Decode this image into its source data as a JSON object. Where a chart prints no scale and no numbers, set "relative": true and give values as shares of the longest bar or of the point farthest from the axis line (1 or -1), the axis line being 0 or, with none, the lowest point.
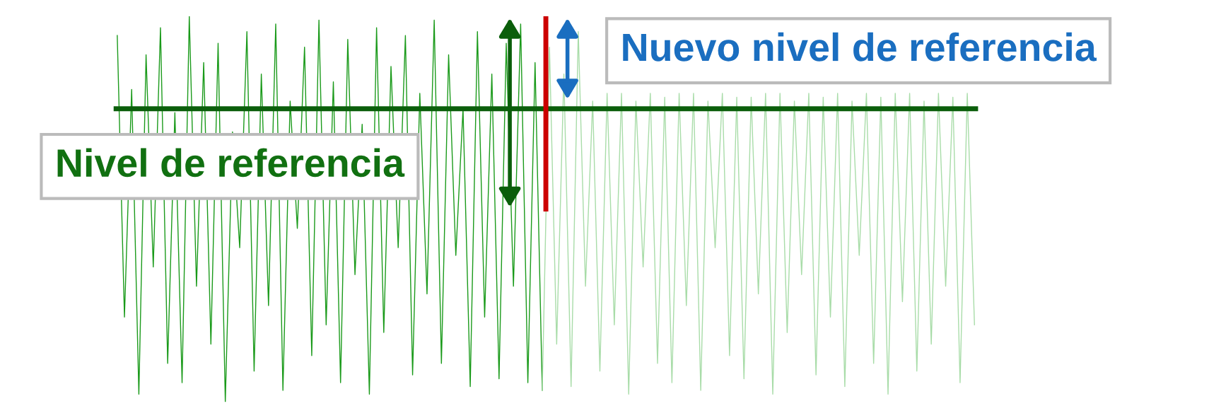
{
  "chart_data": {
    "type": "line",
    "relative": true,
    "legend": false,
    "grid": false,
    "line_style": "solid",
    "marker": "none",
    "categories": [
      null,
      null,
      null,
      null,
      null,
      null,
      null,
      null,
      null,
      null,
      null,
      null,
      null,
      null,
      null,
      null,
      null,
      null,
      null,
      null,
      null,
      null,
      null,
      null,
      null,
      null,
      null,
      null,
      null,
      null,
      null,
      null,
      null,
      null,
      null,
      null,
      null,
      null,
      null,
      null,
      null,
      null,
      null,
      null,
      null,
      null,
      null,
      null,
      null,
      null,
      null,
      null,
      null,
      null,
      null,
      null,
      null,
      null,
      null,
      null,
      null,
      null,
      null,
      null,
      null,
      null,
      null,
      null,
      null,
      null,
      null,
      null,
      null,
      null,
      null,
      null,
      null,
      null,
      null,
      null,
      null,
      null,
      null,
      null,
      null,
      null,
      null,
      null,
      null,
      null,
      null,
      null,
      null,
      null,
      null,
      null,
      null,
      null,
      null,
      null,
      null,
      null,
      null,
      null,
      null,
      null,
      null,
      null,
      null,
      null,
      null,
      null,
      null,
      null,
      null,
      null,
      null,
      null,
      null,
      null
    ],
    "series": [
      {
        "color": "#1a9a1a",
        "values": [
          0.95,
          0.22,
          0.81,
          0.02,
          0.9,
          0.35,
          0.97,
          0.1,
          0.75,
          0.05,
          1.0,
          0.3,
          0.88,
          0.15,
          0.93,
          0.0,
          0.7,
          0.4,
          0.96,
          0.08,
          0.85,
          0.25,
          0.98,
          0.03,
          0.78,
          0.45,
          0.92,
          0.12,
          0.99,
          0.2,
          0.83,
          0.05,
          0.94,
          0.33,
          0.72,
          0.02,
          0.97,
          0.18,
          0.87,
          0.4,
          0.95,
          0.07,
          0.8,
          0.28,
          0.99,
          0.1,
          0.9,
          0.38,
          0.76,
          0.04,
          0.96,
          0.22,
          0.85,
          0.06,
          0.93,
          0.3,
          0.98,
          0.05,
          0.88,
          0.03,
          null,
          null,
          null,
          null,
          null,
          null,
          null,
          null,
          null,
          null,
          null,
          null,
          null,
          null,
          null,
          null,
          null,
          null,
          null,
          null,
          null,
          null,
          null,
          null,
          null,
          null,
          null,
          null,
          null,
          null,
          null,
          null,
          null,
          null,
          null,
          null,
          null,
          null,
          null,
          null,
          null,
          null,
          null,
          null,
          null,
          null,
          null,
          null,
          null,
          null,
          null,
          null,
          null,
          null,
          null,
          null,
          null,
          null,
          null,
          null
        ]
      },
      {
        "color": "#a8dca8",
        "values": [
          null,
          null,
          null,
          null,
          null,
          null,
          null,
          null,
          null,
          null,
          null,
          null,
          null,
          null,
          null,
          null,
          null,
          null,
          null,
          null,
          null,
          null,
          null,
          null,
          null,
          null,
          null,
          null,
          null,
          null,
          null,
          null,
          null,
          null,
          null,
          null,
          null,
          null,
          null,
          null,
          null,
          null,
          null,
          null,
          null,
          null,
          null,
          null,
          null,
          null,
          null,
          null,
          null,
          null,
          null,
          null,
          null,
          null,
          null,
          0.03,
          0.92,
          0.15,
          0.85,
          0.04,
          0.96,
          0.3,
          0.78,
          0.08,
          0.8,
          0.2,
          0.8,
          0.02,
          0.78,
          0.35,
          0.8,
          0.1,
          0.79,
          0.05,
          0.8,
          0.25,
          0.8,
          0.03,
          0.78,
          0.4,
          0.8,
          0.12,
          0.79,
          0.06,
          0.79,
          0.28,
          0.8,
          0.02,
          0.8,
          0.18,
          0.78,
          0.33,
          0.8,
          0.07,
          0.79,
          0.22,
          0.8,
          0.04,
          0.78,
          0.38,
          0.8,
          0.1,
          0.79,
          0.02,
          0.8,
          0.26,
          0.8,
          0.08,
          0.78,
          0.15,
          0.8,
          0.3,
          0.79,
          0.05,
          0.8,
          0.2
        ]
      }
    ],
    "ref_lines": [
      {
        "axis": "y",
        "value": 0.76,
        "color": "#0b5e0b"
      }
    ],
    "annotations": [
      "Nivel de referencia",
      "Nuevo nivel de referencia"
    ]
  }
}
